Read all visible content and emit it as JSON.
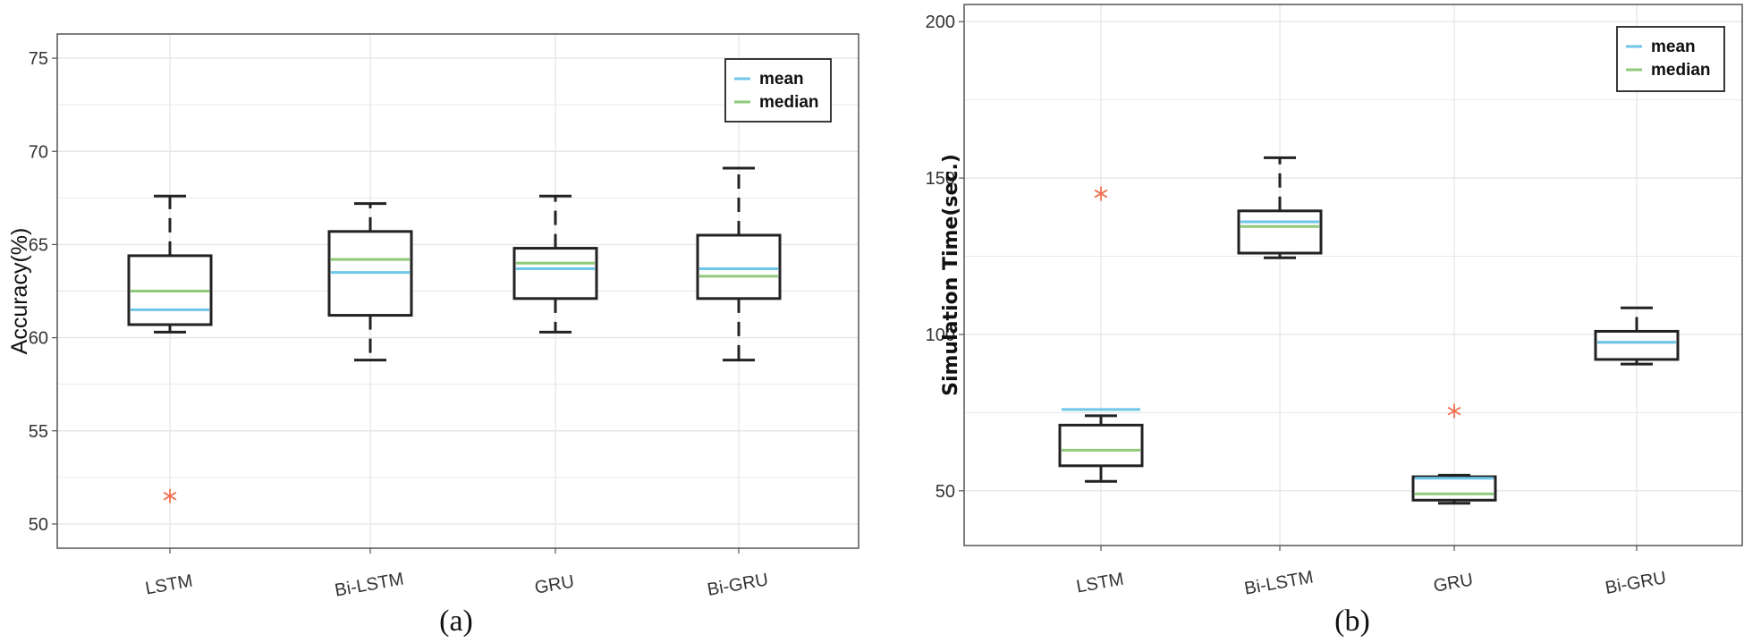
{
  "colors": {
    "mean": "#6ec6ea",
    "median": "#8fc97a",
    "outlier": "#f07050",
    "box": "#222222",
    "grid": "#e6e6e6"
  },
  "chart_data": [
    {
      "type": "box",
      "caption": "(a)",
      "ylabel": "Accuracy(%)",
      "xlabel": "",
      "ylim": [
        48.7,
        76.3
      ],
      "yticks": [
        "50",
        "55",
        "60",
        "65",
        "70",
        "75"
      ],
      "grid": true,
      "legend_position": "top-right",
      "legend": [
        "mean",
        "median"
      ],
      "categories": [
        "LSTM",
        "Bi-LSTM",
        "GRU",
        "Bi-GRU"
      ],
      "boxes": [
        {
          "whisker_low": 60.3,
          "q1": 60.7,
          "median": 62.5,
          "mean": 61.5,
          "q3": 64.4,
          "whisker_high": 67.6,
          "outliers": [
            51.5
          ]
        },
        {
          "whisker_low": 58.8,
          "q1": 61.2,
          "median": 64.2,
          "mean": 63.5,
          "q3": 65.7,
          "whisker_high": 67.2,
          "outliers": []
        },
        {
          "whisker_low": 60.3,
          "q1": 62.1,
          "median": 64.0,
          "mean": 63.7,
          "q3": 64.8,
          "whisker_high": 67.6,
          "outliers": []
        },
        {
          "whisker_low": 58.8,
          "q1": 62.1,
          "median": 63.3,
          "mean": 63.7,
          "q3": 65.5,
          "whisker_high": 69.1,
          "outliers": []
        }
      ]
    },
    {
      "type": "box",
      "caption": "(b)",
      "ylabel": "Simulation Time(sec.)",
      "xlabel": "",
      "ylim": [
        32.5,
        205.5
      ],
      "yticks": [
        "50",
        "100",
        "150",
        "200"
      ],
      "grid": true,
      "legend_position": "top-right",
      "legend": [
        "mean",
        "median"
      ],
      "categories": [
        "LSTM",
        "Bi-LSTM",
        "GRU",
        "Bi-GRU"
      ],
      "boxes": [
        {
          "whisker_low": 53,
          "q1": 58,
          "median": 63,
          "mean": 76,
          "q3": 71,
          "whisker_high": 74,
          "outliers": [
            145
          ]
        },
        {
          "whisker_low": 124.5,
          "q1": 126,
          "median": 134.5,
          "mean": 136,
          "q3": 139.5,
          "whisker_high": 156.5,
          "outliers": []
        },
        {
          "whisker_low": 46,
          "q1": 47,
          "median": 49,
          "mean": 54,
          "q3": 54.5,
          "whisker_high": 55,
          "outliers": [
            75.5
          ]
        },
        {
          "whisker_low": 90.5,
          "q1": 92,
          "median": 97.5,
          "mean": 97.5,
          "q3": 101,
          "whisker_high": 108.5,
          "outliers": []
        }
      ]
    }
  ]
}
